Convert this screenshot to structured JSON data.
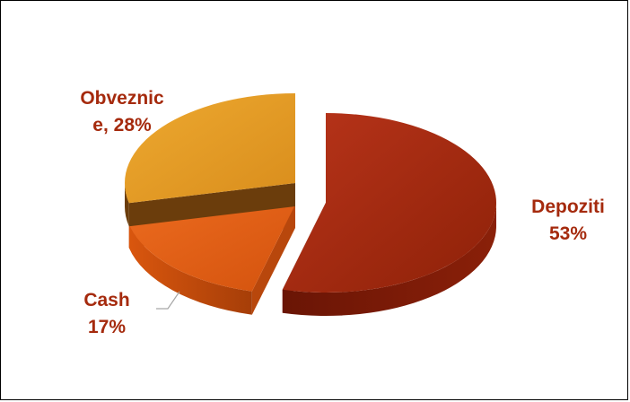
{
  "chart_data": {
    "type": "pie",
    "title": "",
    "slices": [
      {
        "name": "Depoziti",
        "value": 53,
        "color": "#A52A0D"
      },
      {
        "name": "Cash",
        "value": 17,
        "color": "#E15A12"
      },
      {
        "name": "Obveznice",
        "value": 28,
        "color": "#E49B24"
      }
    ],
    "data_labels": {
      "depoziti": {
        "line1": "Depoziti",
        "line2": "53%"
      },
      "cash": {
        "line1": "Cash",
        "line2": "17%"
      },
      "obveznice": {
        "line1": "Obveznic",
        "line2": "e, 28%"
      }
    },
    "label_color": "#A52A0D",
    "exploded": true,
    "legend": "none"
  }
}
